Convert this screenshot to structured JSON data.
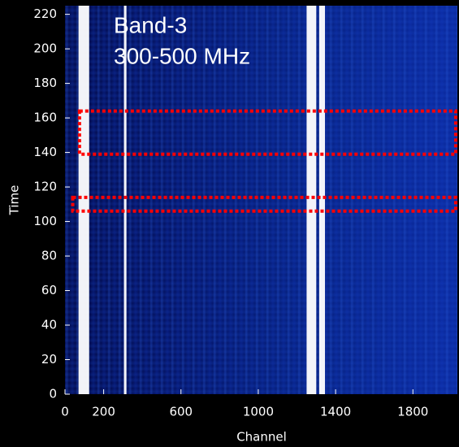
{
  "chart_data": {
    "type": "heatmap",
    "title": "Band-3",
    "subtitle": "300-500 MHz",
    "x_label": "Channel",
    "y_label": "Time",
    "xlim": [
      0,
      2030
    ],
    "ylim": [
      0,
      225
    ],
    "xticks": [
      0,
      200,
      600,
      1000,
      1400,
      1800
    ],
    "yticks": [
      0,
      20,
      40,
      60,
      80,
      100,
      120,
      140,
      160,
      180,
      200,
      220
    ],
    "bright_channels": [
      [
        70,
        125
      ],
      [
        305,
        318
      ],
      [
        1250,
        1300
      ],
      [
        1315,
        1345
      ]
    ],
    "highlight_color": "#ff0000",
    "highlights": [
      {
        "x": [
          75,
          2030
        ],
        "y": [
          139,
          164
        ]
      },
      {
        "x": [
          40,
          2030
        ],
        "y": [
          106,
          114
        ]
      }
    ]
  }
}
